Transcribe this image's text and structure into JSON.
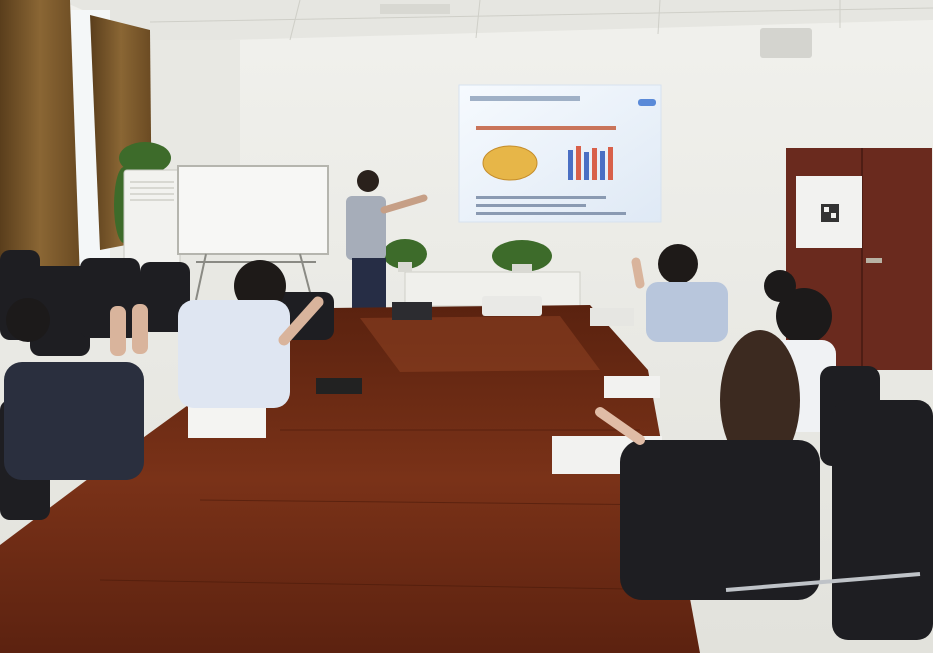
{
  "scene": {
    "description_free": true
  },
  "colors": {
    "wall": "#eeeeea",
    "ceiling": "#e8e8e4",
    "table": "#6b2a14",
    "table_highlight": "#8a3a1e",
    "chair": "#1e1e22",
    "shirt_white": "#dfe6f2",
    "shirt_blue": "#b8c6dc",
    "suit_dark": "#2a2f3e",
    "door": "#6a2a1e",
    "screen_glow": "#eef4fb",
    "curtain": "#7a5a2e",
    "plant": "#3d6b2a"
  },
  "icons": {
    "door_notice": "qr-code-icon"
  }
}
